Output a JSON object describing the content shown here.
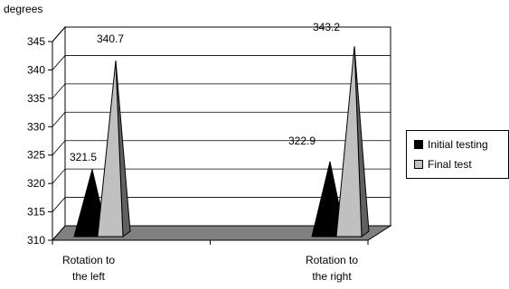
{
  "chart_data": {
    "type": "bar",
    "ylabel": "degrees",
    "ylim": [
      310,
      345
    ],
    "yticks": [
      310,
      315,
      320,
      325,
      330,
      335,
      340,
      345
    ],
    "categories": [
      "Rotation to the left",
      "Rotation to the right"
    ],
    "category_lines": [
      [
        "Rotation to",
        "the left"
      ],
      [
        "Rotation to",
        "the right"
      ]
    ],
    "series": [
      {
        "name": "Initial testing",
        "values": [
          321.5,
          322.9
        ],
        "color": "#000000"
      },
      {
        "name": "Final test",
        "values": [
          340.7,
          343.2
        ],
        "color": "#c0c0c0"
      }
    ],
    "data_labels": [
      {
        "text": "321.5",
        "series": 0,
        "category": 0
      },
      {
        "text": "340.7",
        "series": 1,
        "category": 0
      },
      {
        "text": "322.9",
        "series": 0,
        "category": 1
      },
      {
        "text": "343.2",
        "series": 1,
        "category": 1
      }
    ],
    "legend_position": "right",
    "grid": true
  }
}
